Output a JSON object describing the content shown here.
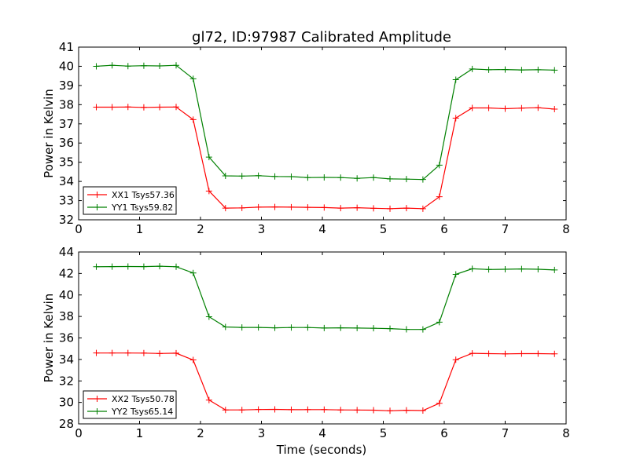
{
  "chart_data": [
    {
      "type": "line",
      "title": "gl72, ID:97987 Calibrated Amplitude",
      "xlabel": "",
      "ylabel": "Power in Kelvin",
      "xlim": [
        0,
        8
      ],
      "ylim": [
        32,
        41
      ],
      "xticks": [
        0,
        1,
        2,
        3,
        4,
        5,
        6,
        7,
        8
      ],
      "yticks": [
        32,
        33,
        34,
        35,
        36,
        37,
        38,
        39,
        40,
        41
      ],
      "grid": false,
      "legend_position": "lower-left",
      "x": [
        0.29,
        0.55,
        0.81,
        1.07,
        1.33,
        1.6,
        1.88,
        2.14,
        2.41,
        2.68,
        2.95,
        3.22,
        3.49,
        3.76,
        4.03,
        4.3,
        4.57,
        4.84,
        5.11,
        5.38,
        5.65,
        5.92,
        6.19,
        6.46,
        6.73,
        7.0,
        7.27,
        7.54,
        7.81
      ],
      "series": [
        {
          "name": "XX1 Tsys57.36",
          "color": "#ff0000",
          "values": [
            37.87,
            37.87,
            37.88,
            37.86,
            37.87,
            37.88,
            37.22,
            33.5,
            32.61,
            32.62,
            32.66,
            32.67,
            32.66,
            32.65,
            32.64,
            32.61,
            32.63,
            32.6,
            32.58,
            32.61,
            32.58,
            33.2,
            37.3,
            37.83,
            37.83,
            37.79,
            37.82,
            37.84,
            37.77
          ]
        },
        {
          "name": "YY1 Tsys59.82",
          "color": "#008000",
          "values": [
            40.0,
            40.05,
            40.01,
            40.03,
            40.02,
            40.05,
            39.35,
            35.27,
            34.29,
            34.28,
            34.3,
            34.26,
            34.25,
            34.2,
            34.21,
            34.2,
            34.16,
            34.2,
            34.13,
            34.12,
            34.1,
            34.85,
            39.3,
            39.86,
            39.82,
            39.83,
            39.81,
            39.82,
            39.8
          ]
        }
      ]
    },
    {
      "type": "line",
      "title": "",
      "xlabel": "Time (seconds)",
      "ylabel": "Power in Kelvin",
      "xlim": [
        0,
        8
      ],
      "ylim": [
        28,
        44
      ],
      "xticks": [
        0,
        1,
        2,
        3,
        4,
        5,
        6,
        7,
        8
      ],
      "yticks": [
        28,
        30,
        32,
        34,
        36,
        38,
        40,
        42,
        44
      ],
      "grid": false,
      "legend_position": "lower-left",
      "x": [
        0.29,
        0.55,
        0.81,
        1.07,
        1.33,
        1.6,
        1.88,
        2.14,
        2.41,
        2.68,
        2.95,
        3.22,
        3.49,
        3.76,
        4.03,
        4.3,
        4.57,
        4.84,
        5.11,
        5.38,
        5.65,
        5.92,
        6.19,
        6.46,
        6.73,
        7.0,
        7.27,
        7.54,
        7.81
      ],
      "series": [
        {
          "name": "XX2 Tsys50.78",
          "color": "#ff0000",
          "values": [
            34.6,
            34.6,
            34.6,
            34.59,
            34.55,
            34.58,
            33.95,
            30.22,
            29.3,
            29.3,
            29.34,
            29.35,
            29.32,
            29.33,
            29.33,
            29.3,
            29.29,
            29.28,
            29.22,
            29.27,
            29.24,
            29.92,
            33.97,
            34.57,
            34.54,
            34.52,
            34.54,
            34.54,
            34.52
          ]
        },
        {
          "name": "YY2 Tsys65.14",
          "color": "#008000",
          "values": [
            42.63,
            42.64,
            42.65,
            42.64,
            42.68,
            42.63,
            42.05,
            37.97,
            37.02,
            36.98,
            36.98,
            36.94,
            36.97,
            36.97,
            36.92,
            36.94,
            36.92,
            36.9,
            36.87,
            36.8,
            36.79,
            37.47,
            41.92,
            42.44,
            42.37,
            42.39,
            42.42,
            42.39,
            42.33
          ]
        }
      ]
    }
  ]
}
